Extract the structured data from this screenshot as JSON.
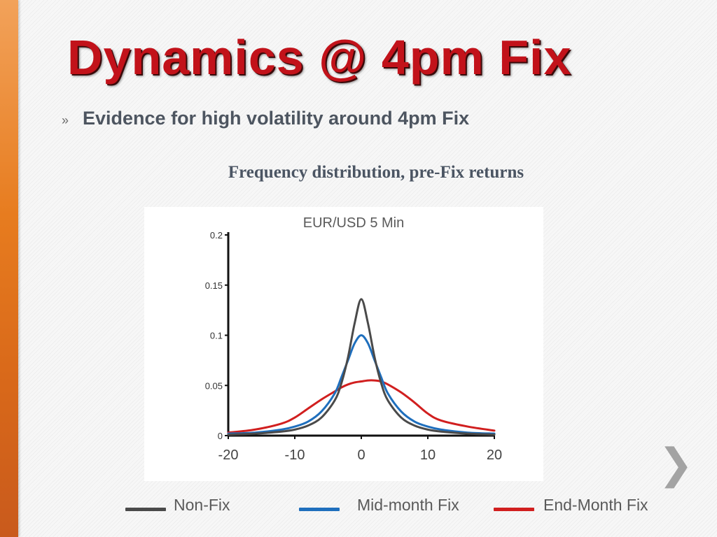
{
  "slide": {
    "title": "Dynamics @ 4pm Fix",
    "bullet_mark": "»",
    "bullet": "Evidence for high volatility around 4pm Fix",
    "subtitle": "Frequency distribution, pre-Fix returns",
    "next_icon": "chevron-right-icon"
  },
  "chart_data": {
    "type": "line",
    "title": "EUR/USD 5 Min",
    "xlabel": "",
    "ylabel": "",
    "xlim": [
      -20,
      20
    ],
    "ylim": [
      0,
      0.2
    ],
    "x_ticks": [
      "-20",
      "-10",
      "0",
      "10",
      "20"
    ],
    "y_ticks": [
      "0",
      "0.05",
      "0.1",
      "0.15",
      "0.2"
    ],
    "grid": false,
    "legend_position": "bottom",
    "x": [
      -20,
      -16,
      -12,
      -10,
      -8,
      -6,
      -4,
      -3,
      -2,
      -1,
      0,
      1,
      2,
      3,
      4,
      6,
      8,
      10,
      12,
      16,
      20
    ],
    "series": [
      {
        "name": "Non-Fix",
        "color": "#4a4a4a",
        "values": [
          0.001,
          0.002,
          0.004,
          0.006,
          0.01,
          0.018,
          0.035,
          0.052,
          0.078,
          0.112,
          0.136,
          0.112,
          0.078,
          0.052,
          0.035,
          0.018,
          0.01,
          0.006,
          0.004,
          0.002,
          0.001
        ]
      },
      {
        "name": "Mid-month Fix",
        "color": "#1f6fbd",
        "values": [
          0.002,
          0.003,
          0.006,
          0.009,
          0.014,
          0.024,
          0.042,
          0.058,
          0.075,
          0.092,
          0.1,
          0.092,
          0.075,
          0.058,
          0.042,
          0.024,
          0.014,
          0.009,
          0.006,
          0.003,
          0.002
        ]
      },
      {
        "name": "End-Month Fix",
        "color": "#d11f1f",
        "values": [
          0.003,
          0.006,
          0.012,
          0.018,
          0.027,
          0.036,
          0.044,
          0.048,
          0.051,
          0.053,
          0.054,
          0.055,
          0.055,
          0.054,
          0.051,
          0.043,
          0.033,
          0.022,
          0.015,
          0.009,
          0.005
        ]
      }
    ]
  }
}
